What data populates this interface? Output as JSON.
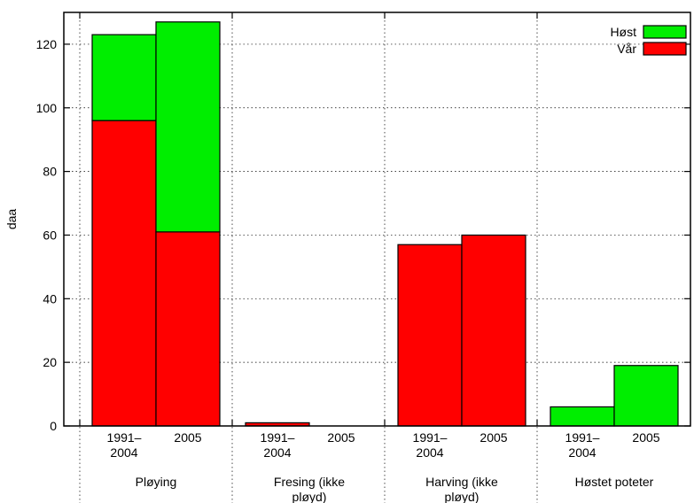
{
  "chart_data": {
    "type": "bar",
    "stacked": true,
    "ylabel": "daa",
    "xlabel": "",
    "ylim": [
      0,
      130
    ],
    "yticks": [
      0,
      20,
      40,
      60,
      80,
      100,
      120
    ],
    "grid": true,
    "legend_position": "top-right",
    "groups": [
      {
        "label": "Pløying",
        "bars": [
          {
            "label": "1991–\n2004",
            "Vår": 96,
            "Høst": 27
          },
          {
            "label": "2005",
            "Vår": 61,
            "Høst": 66
          }
        ]
      },
      {
        "label": "Fresing (ikke\npløyd)",
        "bars": [
          {
            "label": "1991–\n2004",
            "Vår": 1,
            "Høst": 0
          },
          {
            "label": "2005",
            "Vår": 0,
            "Høst": 0
          }
        ]
      },
      {
        "label": "Harving (ikke\npløyd)",
        "bars": [
          {
            "label": "1991–\n2004",
            "Vår": 57,
            "Høst": 0
          },
          {
            "label": "2005",
            "Vår": 60,
            "Høst": 0
          }
        ]
      },
      {
        "label": "Høstet poteter",
        "bars": [
          {
            "label": "1991–\n2004",
            "Vår": 0,
            "Høst": 6
          },
          {
            "label": "2005",
            "Vår": 0,
            "Høst": 19
          }
        ]
      }
    ],
    "series": [
      {
        "name": "Vår",
        "color": "#ff0000"
      },
      {
        "name": "Høst",
        "color": "#00ee00"
      }
    ],
    "legend": [
      {
        "name": "Høst",
        "color": "#00ee00"
      },
      {
        "name": "Vår",
        "color": "#ff0000"
      }
    ]
  }
}
